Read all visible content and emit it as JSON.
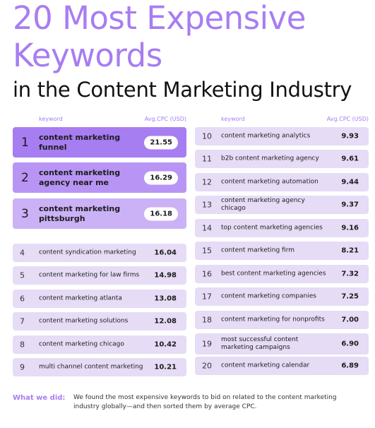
{
  "title": {
    "line1": "20 Most Expensive",
    "line2": "Keywords",
    "line3": "in the Content Marketing Industry"
  },
  "column_headers": {
    "keyword": "keyword",
    "cpc": "Avg.CPC (USD)"
  },
  "colors": {
    "accent": "#a77df2",
    "row_bg": "#e6dcf6"
  },
  "chart_data": {
    "type": "table",
    "columns": [
      "rank",
      "keyword",
      "Avg.CPC (USD)"
    ],
    "rows": [
      {
        "rank": "1",
        "keyword": "content marketing funnel",
        "cpc": "21.55"
      },
      {
        "rank": "2",
        "keyword": "content marketing agency near me",
        "cpc": "16.29"
      },
      {
        "rank": "3",
        "keyword": "content marketing pittsburgh",
        "cpc": "16.18"
      },
      {
        "rank": "4",
        "keyword": "content syndication marketing",
        "cpc": "16.04"
      },
      {
        "rank": "5",
        "keyword": "content marketing for law firms",
        "cpc": "14.98"
      },
      {
        "rank": "6",
        "keyword": "content marketing atlanta",
        "cpc": "13.08"
      },
      {
        "rank": "7",
        "keyword": "content marketing solutions",
        "cpc": "12.08"
      },
      {
        "rank": "8",
        "keyword": "content marketing chicago",
        "cpc": "10.42"
      },
      {
        "rank": "9",
        "keyword": "multi channel content marketing",
        "cpc": "10.21"
      },
      {
        "rank": "10",
        "keyword": "content marketing analytics",
        "cpc": "9.93"
      },
      {
        "rank": "11",
        "keyword": "b2b content marketing agency",
        "cpc": "9.61"
      },
      {
        "rank": "12",
        "keyword": "content marketing automation",
        "cpc": "9.44"
      },
      {
        "rank": "13",
        "keyword": "content marketing agency chicago",
        "cpc": "9.37"
      },
      {
        "rank": "14",
        "keyword": "top content marketing agencies",
        "cpc": "9.16"
      },
      {
        "rank": "15",
        "keyword": "content marketing firm",
        "cpc": "8.21"
      },
      {
        "rank": "16",
        "keyword": "best content marketing agencies",
        "cpc": "7.32"
      },
      {
        "rank": "17",
        "keyword": "content marketing companies",
        "cpc": "7.25"
      },
      {
        "rank": "18",
        "keyword": "content marketing for nonprofits",
        "cpc": "7.00"
      },
      {
        "rank": "19",
        "keyword": "most successful content marketing campaigns",
        "cpc": "6.90"
      },
      {
        "rank": "20",
        "keyword": "content marketing calendar",
        "cpc": "6.89"
      }
    ]
  },
  "footer": {
    "label": "What we did:",
    "text": "We found the most expensive keywords to bid on related to the content marketing industry globally—and then sorted them by average CPC."
  }
}
